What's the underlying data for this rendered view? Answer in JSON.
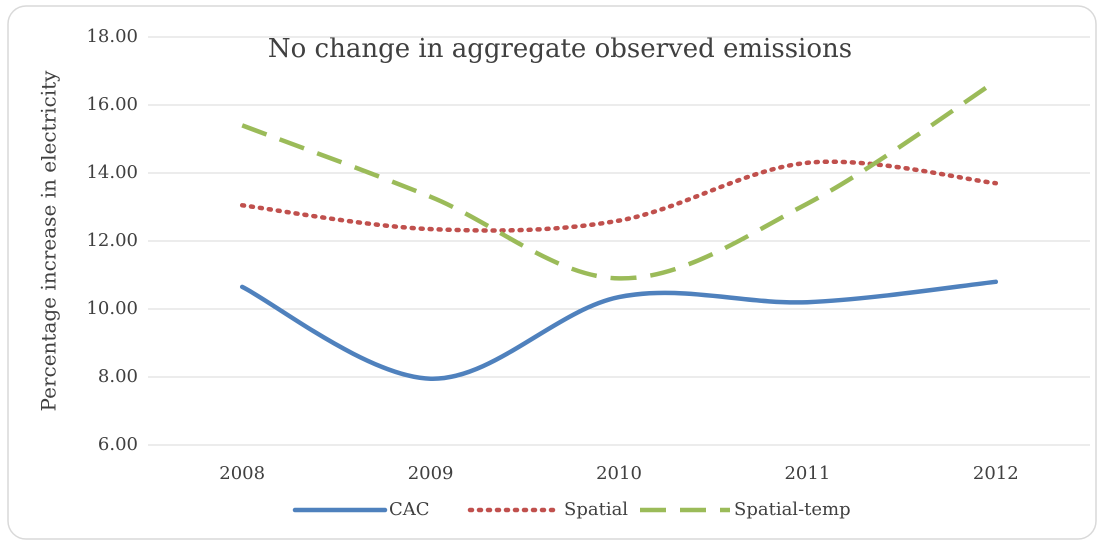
{
  "chart_data": {
    "type": "line",
    "title": "No change in aggregate observed emissions",
    "y_label": "Percentage increase in electricity",
    "categories": [
      "2008",
      "2009",
      "2010",
      "2011",
      "2012"
    ],
    "series": [
      {
        "name": "CAC",
        "color": "#4f81bd",
        "style": "solid",
        "values": [
          10.65,
          7.95,
          10.35,
          10.2,
          10.8
        ]
      },
      {
        "name": "Spatial",
        "color": "#c0504d",
        "style": "dotted",
        "values": [
          13.05,
          12.35,
          12.6,
          14.3,
          13.7
        ]
      },
      {
        "name": "Spatial-temp",
        "color": "#9bbb59",
        "style": "dashed",
        "values": [
          15.4,
          13.3,
          10.9,
          13.1,
          16.7
        ]
      }
    ],
    "ylim": [
      6,
      18
    ],
    "yticks": [
      {
        "value": 6,
        "label": "6.00"
      },
      {
        "value": 8,
        "label": "8.00"
      },
      {
        "value": 10,
        "label": "10.00"
      },
      {
        "value": 12,
        "label": "12.00"
      },
      {
        "value": 14,
        "label": "14.00"
      },
      {
        "value": 16,
        "label": "16.00"
      },
      {
        "value": 18,
        "label": "18.00"
      }
    ],
    "grid": true,
    "smooth": true,
    "legend": "bottom"
  }
}
